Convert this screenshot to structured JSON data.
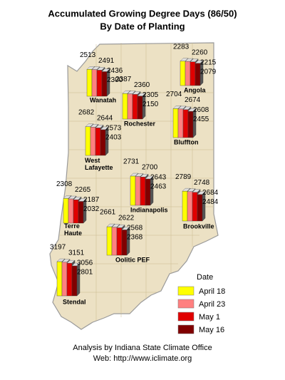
{
  "title": "Accumulated Growing Degree Days (86/50)",
  "subtitle": "By Date of Planting",
  "legend": {
    "title": "Date",
    "series": [
      {
        "name": "April 18",
        "color": "#ffff00"
      },
      {
        "name": "April 23",
        "color": "#ff8080"
      },
      {
        "name": "May 1",
        "color": "#e00000"
      },
      {
        "name": "May 16",
        "color": "#800000"
      }
    ]
  },
  "stations": [
    {
      "name": "Wanatah",
      "values": [
        2513,
        2491,
        2436,
        2300
      ]
    },
    {
      "name": "Angola",
      "values": [
        2283,
        2260,
        2215,
        2079
      ]
    },
    {
      "name": "Rochester",
      "values": [
        2387,
        2360,
        2305,
        2150
      ]
    },
    {
      "name": "Bluffton",
      "values": [
        2704,
        2674,
        2608,
        2455
      ]
    },
    {
      "name": "West Lafayette",
      "values": [
        2682,
        2644,
        2573,
        2403
      ]
    },
    {
      "name": "Indianapolis",
      "values": [
        2731,
        2700,
        2643,
        2463
      ]
    },
    {
      "name": "Brookville",
      "values": [
        2789,
        2748,
        2684,
        2484
      ]
    },
    {
      "name": "Terre Haute",
      "values": [
        2308,
        2265,
        2187,
        2032
      ]
    },
    {
      "name": "Oolitic PEF",
      "values": [
        2661,
        2622,
        2568,
        2368
      ]
    },
    {
      "name": "Stendal",
      "values": [
        3197,
        3151,
        3056,
        2801
      ]
    }
  ],
  "footer": [
    "Analysis by Indiana State Climate Office",
    "Web: http://www.iclimate.org"
  ]
}
